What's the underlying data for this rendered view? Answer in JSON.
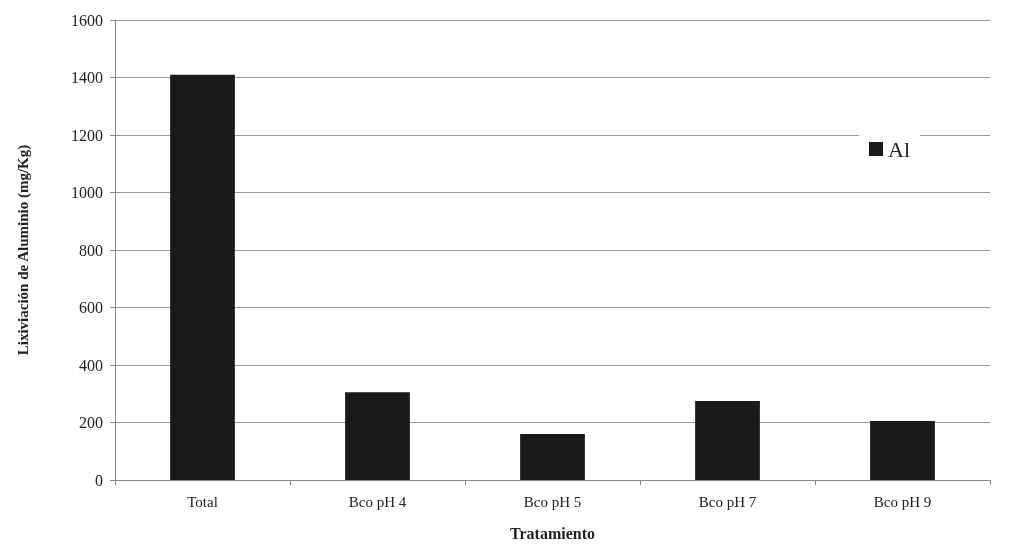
{
  "chart_data": {
    "type": "bar",
    "xlabel": "Tratamiento",
    "ylabel": "Lixiviación de Aluminio (mg/Kg)",
    "categories": [
      "Total",
      "Bco pH 4",
      "Bco pH 5",
      "Bco pH 7",
      "Bco pH 9"
    ],
    "series": [
      {
        "name": "Al",
        "color": "#1a1a1a",
        "values": [
          1410,
          305,
          160,
          275,
          205
        ]
      }
    ],
    "ylim": [
      0,
      1600
    ],
    "yticks": [
      0,
      200,
      400,
      600,
      800,
      1000,
      1200,
      1400,
      1600
    ],
    "grid": "y",
    "legend": "top right"
  }
}
